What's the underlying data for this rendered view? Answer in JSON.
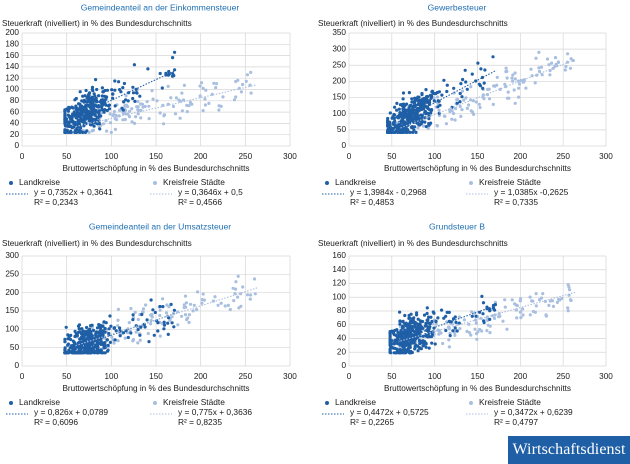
{
  "brand": "Wirtschaftsdienst",
  "colors": {
    "landkreise": "#1f5fa6",
    "staedte": "#a9bfe0",
    "title": "#1f6fb2"
  },
  "chart_data": [
    {
      "type": "scatter",
      "title": "Gemeindeanteil an der Einkommensteuer",
      "ylabel": "Steuerkraft (nivelliert) in % des Bundesdurchschnitts",
      "xlabel": "Bruttowertschöpfung in % des Bundesdurchschnitts",
      "xlim": [
        0,
        300
      ],
      "ylim": [
        0,
        200
      ],
      "xticks": [
        "0",
        "50",
        "100",
        "150",
        "200",
        "250",
        "300"
      ],
      "yticks": [
        "0",
        "20",
        "40",
        "60",
        "80",
        "100",
        "120",
        "140",
        "160",
        "180",
        "200"
      ],
      "series": [
        {
          "name": "Landkreise",
          "x_range": [
            48,
            172
          ],
          "cloud": "dense",
          "trend": {
            "slope": 0.7352,
            "intercept": 0.3641,
            "x0": 50,
            "x1": 172
          },
          "equation": "y = 0,7352x + 0,3641",
          "r2": "R² = 0,2343"
        },
        {
          "name": "Kreisfreie Städte",
          "x_range": [
            58,
            260
          ],
          "cloud": "sparse",
          "trend": {
            "slope": 0.3646,
            "intercept": 0.5,
            "x0": 60,
            "x1": 262
          },
          "equation": "y = 0,3646x + 0,5",
          "r2": "R² = 0,4566"
        }
      ]
    },
    {
      "type": "scatter",
      "title": "Gewerbesteuer",
      "ylabel": "Steuerkraft (nivelliert) in % des Bundesdurchschnitts",
      "xlabel": "Bruttowertschöpfung in % des Bundesdurchschnitts",
      "xlim": [
        0,
        300
      ],
      "ylim": [
        0,
        350
      ],
      "xticks": [
        "0",
        "50",
        "100",
        "150",
        "200",
        "250",
        "300"
      ],
      "yticks": [
        "0",
        "50",
        "100",
        "150",
        "200",
        "250",
        "300",
        "350"
      ],
      "series": [
        {
          "name": "Landkreise",
          "x_range": [
            45,
            170
          ],
          "cloud": "dense",
          "trend": {
            "slope": 1.3984,
            "intercept": -0.2968,
            "x0": 48,
            "x1": 172
          },
          "equation": "y = 1,3984x - 0,2968",
          "r2": "R² = 0,4853"
        },
        {
          "name": "Kreisfreie Städte",
          "x_range": [
            58,
            262
          ],
          "cloud": "sparse",
          "trend": {
            "slope": 1.0385,
            "intercept": -0.2625,
            "x0": 60,
            "x1": 262
          },
          "equation": "y = 1,0385x -0,2625",
          "r2": "R² = 0,7335"
        }
      ]
    },
    {
      "type": "scatter",
      "title": "Gemeindeanteil an der Umsatzsteuer",
      "ylabel": "Steuerkraft (nivelliert) in % des Bundesdurchschnitts",
      "xlabel": "Bruttowertschöpfung in % des Bundesdurchschnitts",
      "xlim": [
        0,
        300
      ],
      "ylim": [
        0,
        300
      ],
      "xticks": [
        "0",
        "50",
        "100",
        "150",
        "200",
        "250",
        "300"
      ],
      "yticks": [
        "0",
        "50",
        "100",
        "150",
        "200",
        "250",
        "300"
      ],
      "series": [
        {
          "name": "Landkreise",
          "x_range": [
            48,
            172
          ],
          "cloud": "dense",
          "trend": {
            "slope": 0.826,
            "intercept": 0.0789,
            "x0": 48,
            "x1": 172
          },
          "equation": "y = 0,826x + 0,0789",
          "r2": "R² = 0,6096"
        },
        {
          "name": "Kreisfreie Städte",
          "x_range": [
            60,
            262
          ],
          "cloud": "sparse",
          "trend": {
            "slope": 0.775,
            "intercept": 0.3636,
            "x0": 60,
            "x1": 264
          },
          "equation": "y = 0,775x + 0,3636",
          "r2": "R² = 0,8235"
        }
      ]
    },
    {
      "type": "scatter",
      "title": "Grundsteuer B",
      "ylabel": "Steuerkraft (nivelliert) in % des Bundesdurchschnitts",
      "xlabel": "Bruttowertschöpfung in % des Bundesdurchschnitts",
      "xlim": [
        0,
        300
      ],
      "ylim": [
        0,
        160
      ],
      "xticks": [
        "0",
        "50",
        "100",
        "150",
        "200",
        "250",
        "300"
      ],
      "yticks": [
        "0",
        "20",
        "40",
        "60",
        "80",
        "100",
        "120",
        "140",
        "160"
      ],
      "series": [
        {
          "name": "Landkreise",
          "x_range": [
            48,
            172
          ],
          "cloud": "dense",
          "trend": {
            "slope": 0.4472,
            "intercept": 0.5725,
            "x0": 48,
            "x1": 172
          },
          "equation": "y = 0,4472x + 0,5725",
          "r2": "R² = 0,2265"
        },
        {
          "name": "Kreisfreie Städte",
          "x_range": [
            58,
            262
          ],
          "cloud": "sparse",
          "trend": {
            "slope": 0.3472,
            "intercept": 0.6239,
            "x0": 60,
            "x1": 264
          },
          "equation": "y = 0,3472x + 0,6239",
          "r2": "R² = 0,4797"
        }
      ]
    }
  ]
}
